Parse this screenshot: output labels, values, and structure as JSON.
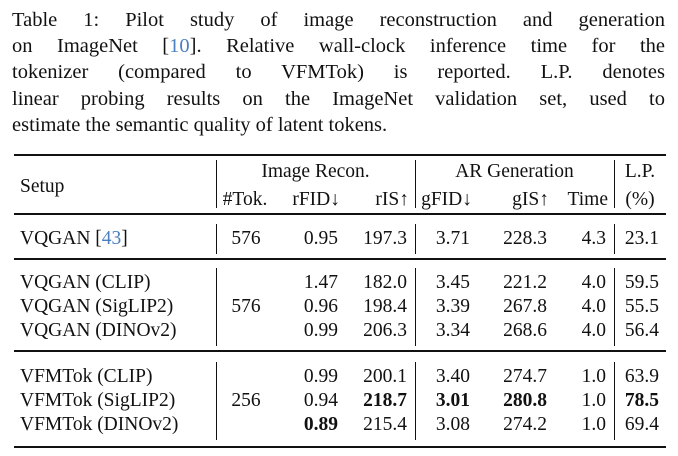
{
  "caption": {
    "line1": "Table 1: Pilot study of image reconstruction and generation",
    "line2_pre": "on ImageNet [",
    "line2_ref": "10",
    "line2_post": "]. Relative wall-clock inference time for the",
    "line3": "tokenizer (compared to VFMTok) is reported. L.P. denotes",
    "line4": "linear probing results on the ImageNet validation set, used to",
    "line5": "estimate the semantic quality of latent tokens."
  },
  "header": {
    "setup": "Setup",
    "group_recon": "Image Recon.",
    "group_gen": "AR Generation",
    "lp": "L.P.",
    "lp_unit": "(%)",
    "cols": [
      "#Tok.",
      "rFID↓",
      "rIS↑",
      "gFID↓",
      "gIS↑",
      "Time"
    ]
  },
  "groups": [
    {
      "tok": "576",
      "rows": [
        {
          "setup": "VQGAN [",
          "ref": "43",
          "setup_post": "]",
          "rfid": "0.95",
          "ris": "197.3",
          "gfid": "3.71",
          "gis": "228.3",
          "time": "4.3",
          "lp": "23.1",
          "bold": []
        }
      ]
    },
    {
      "tok": "576",
      "rows": [
        {
          "setup": "VQGAN (CLIP)",
          "rfid": "1.47",
          "ris": "182.0",
          "gfid": "3.45",
          "gis": "221.2",
          "time": "4.0",
          "lp": "59.5",
          "bold": []
        },
        {
          "setup": "VQGAN (SigLIP2)",
          "rfid": "0.96",
          "ris": "198.4",
          "gfid": "3.39",
          "gis": "267.8",
          "time": "4.0",
          "lp": "55.5",
          "bold": []
        },
        {
          "setup": "VQGAN (DINOv2)",
          "rfid": "0.99",
          "ris": "206.3",
          "gfid": "3.34",
          "gis": "268.6",
          "time": "4.0",
          "lp": "56.4",
          "bold": []
        }
      ]
    },
    {
      "tok": "256",
      "rows": [
        {
          "setup": "VFMTok (CLIP)",
          "rfid": "0.99",
          "ris": "200.1",
          "gfid": "3.40",
          "gis": "274.7",
          "time": "1.0",
          "lp": "63.9",
          "bold": []
        },
        {
          "setup": "VFMTok (SigLIP2)",
          "rfid": "0.94",
          "ris": "218.7",
          "gfid": "3.01",
          "gis": "280.8",
          "time": "1.0",
          "lp": "78.5",
          "bold": [
            "ris",
            "gfid",
            "gis",
            "lp"
          ]
        },
        {
          "setup": "VFMTok (DINOv2)",
          "rfid": "0.89",
          "ris": "215.4",
          "gfid": "3.08",
          "gis": "274.2",
          "time": "1.0",
          "lp": "69.4",
          "bold": [
            "rfid"
          ]
        }
      ]
    }
  ]
}
